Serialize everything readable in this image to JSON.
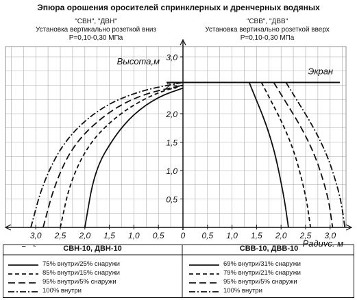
{
  "header": {
    "title": "Эпюра орошения оросителей спринклерных и дренчерных водяных",
    "left": {
      "models": "\"СВН\", \"ДВН\"",
      "install": "Установка вертикально розеткой вниз",
      "pressure": "P=0,10-0,30 МПа"
    },
    "right": {
      "models": "\"СВВ\", \"ДВВ\"",
      "install": "Установка вертикально розеткой вверх",
      "pressure": "P=0,10-0,30 МПа"
    }
  },
  "chart_data": {
    "type": "line",
    "ylabel": "Высота,м",
    "xlabel_left": "Радиус, м",
    "xlabel_right": "Радиус, м",
    "screen_label": "Экран",
    "ylim": [
      0,
      3.0
    ],
    "xlim": [
      -3.5,
      3.5
    ],
    "y_ticks": [
      "0,5",
      "1,0",
      "1,5",
      "2,0",
      "2,5",
      "3,0"
    ],
    "x_ticks_left": [
      "3,0",
      "2,5",
      "2,0",
      "1,5",
      "1,0",
      "0,5",
      "0"
    ],
    "x_ticks_right": [
      "0,5",
      "1,0",
      "1,5",
      "2,0",
      "2,5",
      "3,0"
    ],
    "screen_height": 2.55,
    "series_left": [
      {
        "style": "solid",
        "points": [
          [
            -2.0,
            0
          ],
          [
            -1.8,
            1.0
          ],
          [
            -1.4,
            1.6
          ],
          [
            -1.0,
            2.0
          ],
          [
            -0.5,
            2.3
          ],
          [
            0,
            2.45
          ]
        ]
      },
      {
        "style": "dash",
        "points": [
          [
            -2.5,
            0
          ],
          [
            -2.3,
            0.8
          ],
          [
            -1.9,
            1.5
          ],
          [
            -1.3,
            2.0
          ],
          [
            -0.6,
            2.35
          ],
          [
            0,
            2.5
          ]
        ]
      },
      {
        "style": "longdash",
        "points": [
          [
            -2.85,
            0
          ],
          [
            -2.6,
            0.8
          ],
          [
            -2.2,
            1.5
          ],
          [
            -1.5,
            2.05
          ],
          [
            -0.8,
            2.35
          ],
          [
            0,
            2.5
          ]
        ]
      },
      {
        "style": "dashdot",
        "points": [
          [
            -3.1,
            0
          ],
          [
            -2.85,
            0.8
          ],
          [
            -2.4,
            1.55
          ],
          [
            -1.7,
            2.1
          ],
          [
            -0.9,
            2.4
          ],
          [
            0,
            2.55
          ]
        ]
      }
    ],
    "series_right": [
      {
        "style": "solid",
        "points": [
          [
            1.35,
            2.55
          ],
          [
            1.8,
            1.6
          ],
          [
            2.05,
            0.6
          ],
          [
            2.15,
            0
          ]
        ]
      },
      {
        "style": "dash",
        "points": [
          [
            1.6,
            2.55
          ],
          [
            2.2,
            1.55
          ],
          [
            2.5,
            0.6
          ],
          [
            2.6,
            0
          ]
        ]
      },
      {
        "style": "longdash",
        "points": [
          [
            1.85,
            2.55
          ],
          [
            2.6,
            1.5
          ],
          [
            2.95,
            0.6
          ],
          [
            3.05,
            0
          ]
        ]
      },
      {
        "style": "dashdot",
        "points": [
          [
            2.1,
            2.55
          ],
          [
            2.85,
            1.5
          ],
          [
            3.2,
            0.6
          ],
          [
            3.3,
            0
          ]
        ]
      }
    ]
  },
  "legend": {
    "left": {
      "title": "СВН-10, ДВН-10",
      "items": [
        {
          "style": "solid",
          "label": "75% внутри/25% снаружи"
        },
        {
          "style": "dash",
          "label": "85% внутри/15% снаружи"
        },
        {
          "style": "longdash",
          "label": "95% внутри/5% снаружи"
        },
        {
          "style": "dashdot",
          "label": "100% внутри"
        }
      ]
    },
    "right": {
      "title": "СВВ-10, ДВВ-10",
      "items": [
        {
          "style": "solid",
          "label": "69% внутри/31% снаружи"
        },
        {
          "style": "dash",
          "label": "79% внутри/21% снаружи"
        },
        {
          "style": "longdash",
          "label": "95% внутри/5% снаружи"
        },
        {
          "style": "dashdot",
          "label": "100% внутри"
        }
      ]
    }
  }
}
